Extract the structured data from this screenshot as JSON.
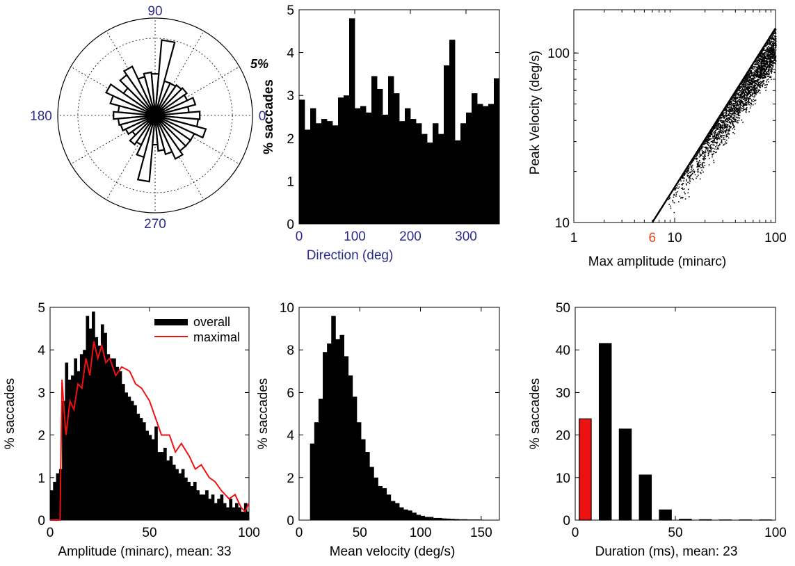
{
  "colors": {
    "bar": "#000000",
    "highlight": "#ee1111",
    "maximal_line": "#ee1111",
    "axis_blue": "#2b2b8f",
    "red_tick": "#e8441a"
  },
  "chart_data": [
    {
      "id": "polar",
      "type": "polar-rose",
      "angle_labels": [
        "90",
        "0",
        "180",
        "270"
      ],
      "radius_label": "5%",
      "rmax": 6.3,
      "angles_deg": [
        0,
        10,
        20,
        30,
        40,
        50,
        60,
        70,
        80,
        90,
        100,
        110,
        120,
        130,
        140,
        150,
        160,
        170,
        180,
        190,
        200,
        210,
        220,
        230,
        240,
        250,
        260,
        270,
        280,
        290,
        300,
        310,
        320,
        330,
        340,
        350
      ],
      "values": [
        2.9,
        2.2,
        2.7,
        2.3,
        2.5,
        2.4,
        2.3,
        2.3,
        4.9,
        2.7,
        2.8,
        2.6,
        3.5,
        3.2,
        2.5,
        3.5,
        3.0,
        2.4,
        2.7,
        2.4,
        2.3,
        2.1,
        1.8,
        2.3,
        2.1,
        2.8,
        4.3,
        1.9,
        2.3,
        2.6,
        3.1,
        2.8,
        2.8,
        2.8,
        3.4,
        2.8
      ]
    },
    {
      "id": "direction",
      "type": "bar",
      "xlabel": "Direction (deg)",
      "ylabel": "% saccades",
      "xlim": [
        0,
        360
      ],
      "ylim": [
        0,
        5
      ],
      "xticks": [
        0,
        100,
        200,
        300
      ],
      "yticks": [
        0,
        1,
        2,
        3,
        4,
        5
      ],
      "bin_width": 10,
      "x": [
        0,
        10,
        20,
        30,
        40,
        50,
        60,
        70,
        80,
        90,
        100,
        110,
        120,
        130,
        140,
        150,
        160,
        170,
        180,
        190,
        200,
        210,
        220,
        230,
        240,
        250,
        260,
        270,
        280,
        290,
        300,
        310,
        320,
        330,
        340,
        350
      ],
      "values": [
        2.9,
        2.2,
        2.7,
        2.35,
        2.45,
        2.4,
        2.3,
        2.95,
        3.0,
        4.8,
        2.7,
        2.75,
        2.6,
        3.45,
        3.15,
        2.55,
        3.45,
        3.05,
        2.4,
        2.7,
        2.45,
        2.35,
        2.1,
        1.9,
        2.35,
        2.1,
        3.7,
        4.3,
        1.95,
        2.35,
        2.6,
        3.05,
        2.8,
        2.75,
        2.8,
        3.4
      ]
    },
    {
      "id": "main-sequence",
      "type": "scatter",
      "xlabel": "Max amplitude (minarc)",
      "ylabel": "Peak Velocity (deg/s)",
      "xscale": "log",
      "yscale": "log",
      "xlim": [
        1,
        100
      ],
      "ylim": [
        10,
        180
      ],
      "xticks": [
        "1",
        "10",
        "100"
      ],
      "yticks": [
        "10",
        "100"
      ],
      "marked_xtick": "6",
      "fit_line": {
        "x": [
          6,
          100
        ],
        "y": [
          10,
          140
        ]
      },
      "point_cloud": {
        "x_range": [
          6,
          100
        ],
        "approx_count": 2500,
        "centerline": {
          "x": [
            10,
            20,
            40,
            80,
            100
          ],
          "y": [
            15,
            28,
            50,
            90,
            110
          ]
        }
      }
    },
    {
      "id": "amplitude",
      "type": "bar",
      "xlabel": "Amplitude (minarc), mean: 33",
      "ylabel": "% saccades",
      "xlim": [
        0,
        100
      ],
      "ylim": [
        0,
        5
      ],
      "xticks": [
        0,
        50,
        100
      ],
      "yticks": [
        0,
        1,
        2,
        3,
        4,
        5
      ],
      "legend": {
        "position": "top-right",
        "entries": [
          "overall",
          "maximal"
        ]
      },
      "bin_width": 1.5,
      "x_start": 0,
      "series": [
        {
          "name": "overall",
          "values": [
            0.7,
            0.9,
            1.1,
            1.2,
            2.8,
            3.7,
            3.3,
            3.4,
            3.8,
            3.5,
            3.9,
            4.0,
            4.8,
            4.5,
            4.9,
            4.3,
            4.1,
            4.6,
            4.4,
            3.9,
            3.8,
            3.8,
            3.6,
            3.5,
            3.2,
            3.0,
            2.9,
            2.8,
            2.7,
            2.5,
            2.4,
            2.3,
            2.1,
            2.0,
            1.9,
            2.2,
            1.6,
            1.6,
            1.7,
            1.4,
            1.5,
            1.3,
            1.2,
            1.1,
            1.2,
            1.0,
            0.9,
            0.8,
            0.9,
            0.7,
            0.6,
            0.6,
            0.7,
            0.5,
            0.6,
            0.4,
            0.5,
            0.6,
            0.4,
            0.3,
            0.5,
            0.3,
            0.4,
            0.3,
            0.2,
            0.4,
            0.2
          ]
        },
        {
          "name": "maximal",
          "x": [
            0,
            3,
            5,
            6,
            7,
            8,
            10,
            12,
            14,
            16,
            18,
            20,
            22,
            24,
            26,
            28,
            30,
            33,
            36,
            40,
            43,
            46,
            50,
            53,
            56,
            60,
            63,
            66,
            70,
            73,
            76,
            80,
            83,
            86,
            90,
            93,
            96,
            98,
            100
          ],
          "y": [
            0,
            0,
            0,
            3.3,
            2.6,
            2.0,
            2.8,
            2.6,
            3.2,
            3.1,
            3.8,
            3.4,
            4.2,
            3.8,
            4.1,
            3.7,
            3.8,
            3.4,
            3.6,
            3.5,
            3.2,
            3.1,
            2.8,
            2.4,
            2.0,
            2.0,
            1.6,
            1.8,
            1.5,
            1.2,
            1.3,
            1.0,
            0.9,
            0.7,
            0.5,
            0.6,
            0.3,
            0.2,
            0.4
          ]
        }
      ]
    },
    {
      "id": "mean-velocity",
      "type": "bar",
      "xlabel": "Mean velocity (deg/s)",
      "ylabel": "% saccades",
      "xlim": [
        0,
        165
      ],
      "ylim": [
        0,
        10
      ],
      "xticks": [
        0,
        50,
        100,
        150
      ],
      "yticks": [
        0,
        2,
        4,
        6,
        8,
        10
      ],
      "bin_width": 3.5,
      "x_start": 9,
      "values": [
        3.6,
        4.6,
        5.7,
        7.9,
        8.3,
        9.6,
        8.5,
        8.7,
        7.7,
        6.8,
        5.8,
        4.6,
        3.8,
        3.2,
        2.5,
        2.0,
        1.6,
        1.5,
        1.2,
        0.9,
        0.8,
        0.6,
        0.5,
        0.45,
        0.35,
        0.25,
        0.2,
        0.15,
        0.15,
        0.1,
        0.1,
        0.08,
        0.07,
        0.06,
        0.05,
        0.04,
        0.04,
        0.03,
        0.03,
        0.03,
        0.02
      ]
    },
    {
      "id": "duration",
      "type": "bar",
      "xlabel": "Duration (ms), mean: 23",
      "ylabel": "% saccades",
      "xlim": [
        0,
        100
      ],
      "ylim": [
        0,
        50
      ],
      "xticks": [
        0,
        50,
        100
      ],
      "yticks": [
        0,
        10,
        20,
        30,
        40,
        50
      ],
      "bin_width": 6,
      "x": [
        5,
        15,
        25,
        35,
        45,
        55,
        65,
        75,
        85,
        95
      ],
      "values": [
        23.8,
        41.5,
        21.4,
        10.6,
        2.4,
        0.2,
        0.1,
        0.05,
        0.05,
        0.05
      ],
      "highlight_index": 0
    }
  ]
}
